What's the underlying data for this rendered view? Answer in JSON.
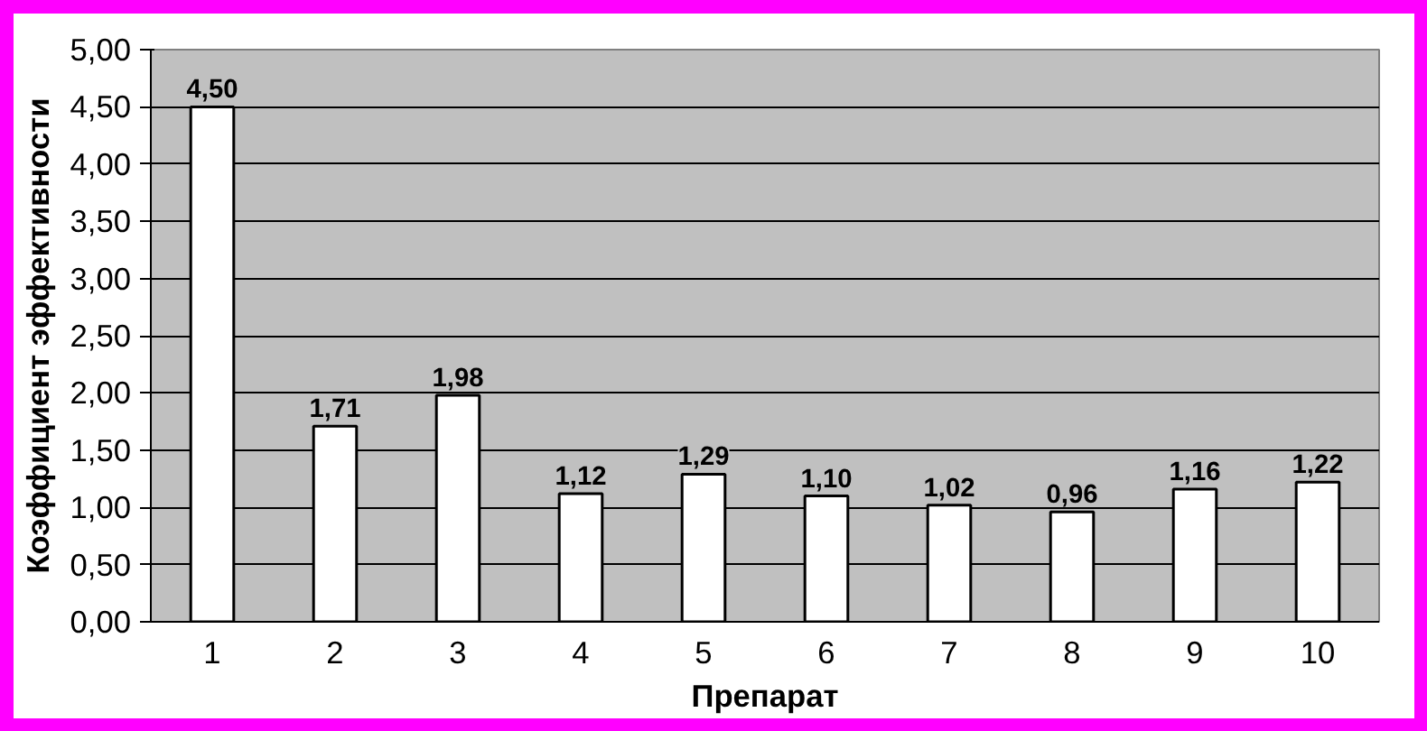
{
  "chart_data": {
    "type": "bar",
    "xlabel": "Препарат",
    "ylabel": "Коэффициент эффективности",
    "categories": [
      "1",
      "2",
      "3",
      "4",
      "5",
      "6",
      "7",
      "8",
      "9",
      "10"
    ],
    "values": [
      4.5,
      1.71,
      1.98,
      1.12,
      1.29,
      1.1,
      1.02,
      0.96,
      1.16,
      1.22
    ],
    "value_labels": [
      "4,50",
      "1,71",
      "1,98",
      "1,12",
      "1,29",
      "1,10",
      "1,02",
      "0,96",
      "1,16",
      "1,22"
    ],
    "color": "#ffffff",
    "ylim": [
      0,
      5
    ],
    "yticks": [
      {
        "value": 0,
        "label": "0,00"
      },
      {
        "value": 0.5,
        "label": "0,50"
      },
      {
        "value": 1,
        "label": "1,00"
      },
      {
        "value": 1.5,
        "label": "1,50"
      },
      {
        "value": 2,
        "label": "2,00"
      },
      {
        "value": 2.5,
        "label": "2,50"
      },
      {
        "value": 3,
        "label": "3,00"
      },
      {
        "value": 3.5,
        "label": "3,50"
      },
      {
        "value": 4,
        "label": "4,00"
      },
      {
        "value": 4.5,
        "label": "4,50"
      },
      {
        "value": 5,
        "label": "5,00"
      }
    ],
    "grid": "y"
  }
}
